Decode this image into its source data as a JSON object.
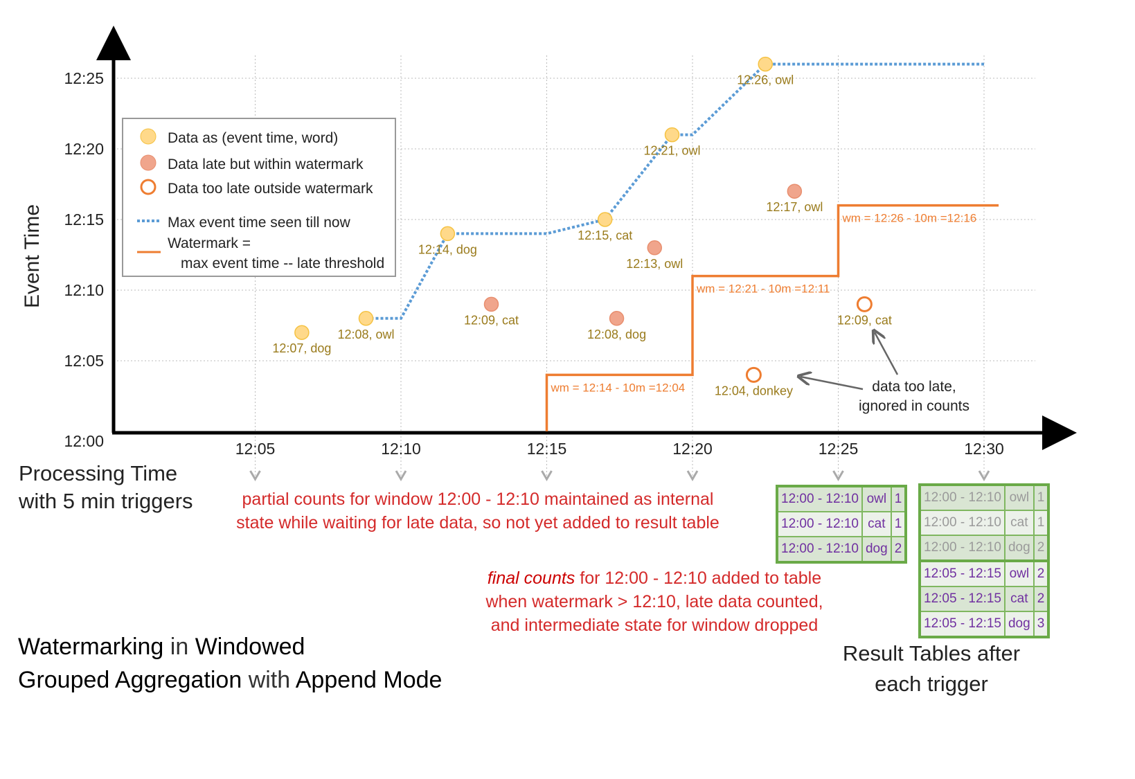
{
  "axes": {
    "y_label": "Event Time",
    "x_label_line1": "Processing Time",
    "x_label_line2": "with 5 min triggers",
    "y_ticks": [
      "12:00",
      "12:05",
      "12:10",
      "12:15",
      "12:20",
      "12:25"
    ],
    "x_ticks": [
      "12:05",
      "12:10",
      "12:15",
      "12:20",
      "12:25",
      "12:30"
    ]
  },
  "legend": {
    "data": "Data as (event time, word)",
    "late": "Data late but within watermark",
    "too_late": "Data too late outside watermark",
    "max": "Max event time seen till now",
    "wm1": "Watermark =",
    "wm2": "max event time -- late threshold"
  },
  "colors": {
    "data": "#ffd98a",
    "late": "#f0a58c",
    "too_late": "#ee7d31",
    "max_line": "#5b9bd5",
    "watermark": "#ee7d31",
    "label": "#9a7b1c"
  },
  "points": [
    {
      "proc_min": 6.6,
      "event_min": 7,
      "label": "12:07, dog",
      "type": "data"
    },
    {
      "proc_min": 8.8,
      "event_min": 8,
      "label": "12:08, owl",
      "type": "data"
    },
    {
      "proc_min": 11.6,
      "event_min": 14,
      "label": "12:14, dog",
      "type": "data"
    },
    {
      "proc_min": 13.1,
      "event_min": 9,
      "label": "12:09, cat",
      "type": "late"
    },
    {
      "proc_min": 17.0,
      "event_min": 15,
      "label": "12:15, cat",
      "type": "data"
    },
    {
      "proc_min": 17.4,
      "event_min": 8,
      "label": "12:08, dog",
      "type": "late"
    },
    {
      "proc_min": 18.7,
      "event_min": 13,
      "label": "12:13, owl",
      "type": "late"
    },
    {
      "proc_min": 19.3,
      "event_min": 21,
      "label": "12:21, owl",
      "type": "data"
    },
    {
      "proc_min": 22.1,
      "event_min": 4,
      "label": "12:04, donkey",
      "type": "too_late"
    },
    {
      "proc_min": 22.5,
      "event_min": 26,
      "label": "12:26, owl",
      "type": "data"
    },
    {
      "proc_min": 23.5,
      "event_min": 17,
      "label": "12:17, owl",
      "type": "late"
    },
    {
      "proc_min": 25.9,
      "event_min": 9,
      "label": "12:09, cat",
      "type": "too_late"
    }
  ],
  "max_line": [
    [
      8.8,
      8
    ],
    [
      10,
      8
    ],
    [
      11.6,
      14
    ],
    [
      15,
      14
    ],
    [
      17,
      15
    ],
    [
      19.3,
      21
    ],
    [
      20,
      21
    ],
    [
      22.5,
      26
    ],
    [
      30,
      26
    ]
  ],
  "watermark": [
    {
      "from": 15,
      "to": 20,
      "value": 4,
      "label": "wm = 12:14 - 10m =12:04"
    },
    {
      "from": 20,
      "to": 25,
      "value": 11,
      "label": "wm = 12:21 - 10m =12:11"
    },
    {
      "from": 25,
      "to": 30.5,
      "value": 16,
      "label": "wm = 12:26 - 10m =12:16"
    }
  ],
  "annotation": {
    "too_late_1": "data too late,",
    "too_late_2": "ignored in counts"
  },
  "notes": {
    "partial_1": "partial counts for window 12:00 - 12:10 maintained as internal",
    "partial_2": "state while waiting for late data, so not yet added  to result table",
    "final_em": "final counts",
    "final_1": " for 12:00 - 12:10 added to table",
    "final_2": "when watermark > 12:10, late data counted,",
    "final_3": "and intermediate state for window dropped"
  },
  "title": {
    "a": "Watermarking",
    "b": " in ",
    "c": "Windowed",
    "d": "Grouped Aggregation",
    "e": " with ",
    "f": "Append Mode"
  },
  "result_caption": {
    "l1": "Result Tables after",
    "l2": "each trigger"
  },
  "table_25": [
    [
      "12:00 - 12:10",
      "owl",
      "1"
    ],
    [
      "12:00 - 12:10",
      "cat",
      "1"
    ],
    [
      "12:00 - 12:10",
      "dog",
      "2"
    ]
  ],
  "table_30": [
    [
      "12:00 - 12:10",
      "owl",
      "1"
    ],
    [
      "12:00 - 12:10",
      "cat",
      "1"
    ],
    [
      "12:00 - 12:10",
      "dog",
      "2"
    ],
    [
      "12:05 - 12:15",
      "owl",
      "2"
    ],
    [
      "12:05 - 12:15",
      "cat",
      "2"
    ],
    [
      "12:05 - 12:15",
      "dog",
      "3"
    ]
  ]
}
